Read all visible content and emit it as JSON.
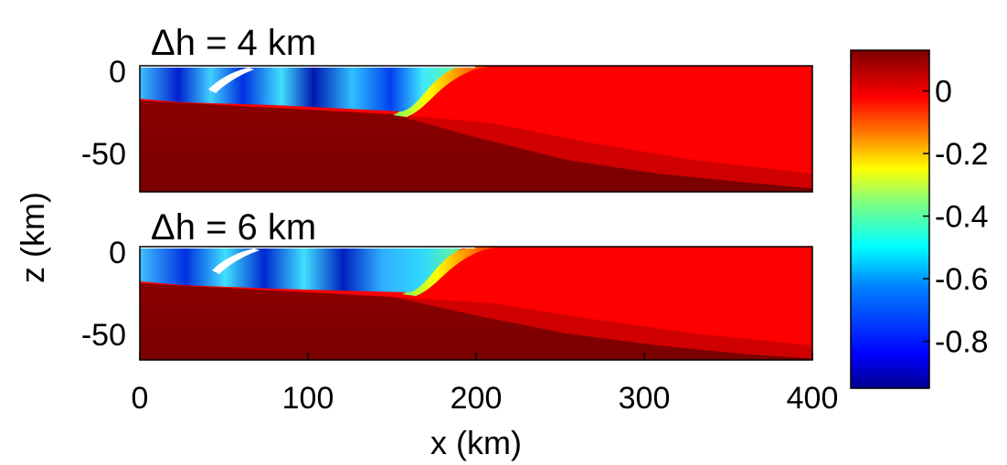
{
  "chart_data": [
    {
      "type": "heatmap",
      "title": "Δh = 4 km",
      "x_ticks": [
        "0",
        "100",
        "200",
        "300",
        "400"
      ],
      "y_ticks": [
        "0",
        "-50"
      ],
      "xlim": [
        0,
        400
      ],
      "ylim": [
        -75,
        0
      ],
      "colormap": "jet",
      "features": {
        "surface_layer_depth_km": -20,
        "front_x_km": 175,
        "lower_layer_thickening_x_km": 400,
        "white_patch_x_km": 45
      }
    },
    {
      "type": "heatmap",
      "title": "Δh = 6 km",
      "x_ticks": [
        "0",
        "100",
        "200",
        "300",
        "400"
      ],
      "y_ticks": [
        "0",
        "-50"
      ],
      "xlim": [
        0,
        400
      ],
      "ylim": [
        -65,
        0
      ],
      "colormap": "jet",
      "features": {
        "surface_layer_depth_km": -20,
        "front_x_km": 180,
        "lower_layer_thickening_x_km": 400,
        "white_patch_x_km": 50
      }
    }
  ],
  "shared": {
    "xlabel": "x (km)",
    "ylabel": "z (km)"
  },
  "colorbar": {
    "range": [
      -0.95,
      0.13
    ],
    "tick_values": [
      0,
      -0.2,
      -0.4,
      -0.6,
      -0.8
    ],
    "tick_labels": [
      "0",
      "-0.2",
      "-0.4",
      "-0.6",
      "-0.8"
    ],
    "colors": [
      "#00008f",
      "#0000ff",
      "#0080ff",
      "#00ffff",
      "#80ff80",
      "#ffff00",
      "#ff8000",
      "#ff0000",
      "#800000"
    ]
  }
}
